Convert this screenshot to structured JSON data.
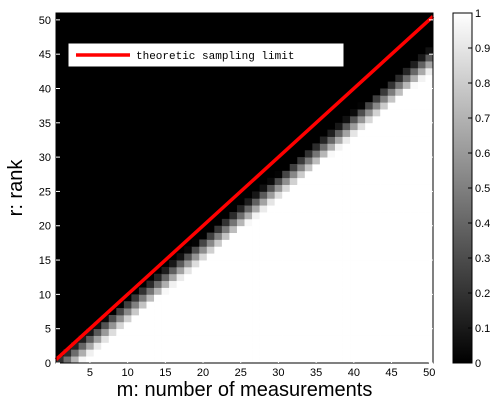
{
  "chart_data": {
    "type": "heatmap",
    "title": "",
    "xlabel": "m: number of measurements",
    "ylabel": "r: rank",
    "xlim": [
      0.5,
      50.5
    ],
    "ylim": [
      0,
      51
    ],
    "x_ticks": [
      5,
      10,
      15,
      20,
      25,
      30,
      35,
      40,
      45,
      50
    ],
    "y_ticks": [
      0,
      5,
      10,
      15,
      20,
      25,
      30,
      35,
      40,
      45,
      50
    ],
    "grid": false,
    "legend": {
      "position": "top-left",
      "entries": [
        "theoretic sampling limit"
      ]
    },
    "series": [
      {
        "name": "theoretic sampling limit",
        "type": "line",
        "color": "#ff0000",
        "x": [
          0.5,
          50.5
        ],
        "y": [
          0.5,
          50.5
        ]
      }
    ],
    "colorbar": {
      "range": [
        0,
        1
      ],
      "ticks": [
        "0",
        "0.1",
        "0.2",
        "0.3",
        "0.4",
        "0.5",
        "0.6",
        "0.7",
        "0.8",
        "0.9",
        "1"
      ],
      "colormap": "gray"
    },
    "surface": {
      "description_of_values": "cell value in [0,1]; 0 (black) where rank r is at or above the limit, rising to 1 (white) for r well below m",
      "boundary_offset_low_r": 2,
      "boundary_slope_extra": 0.09,
      "transition_width": 3.5
    }
  }
}
